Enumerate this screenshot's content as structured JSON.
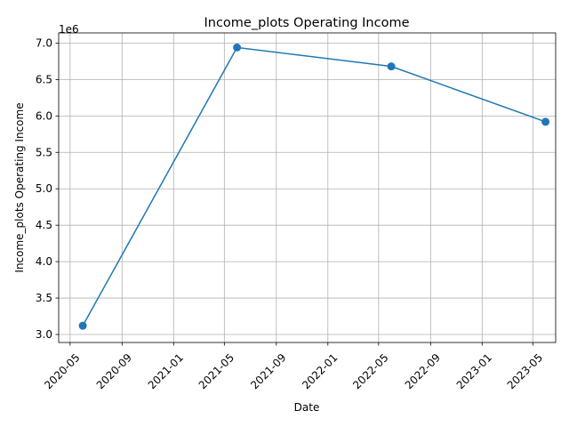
{
  "chart_data": {
    "type": "line",
    "title": "Income_plots Operating Income",
    "xlabel": "Date",
    "ylabel": "Income_plots Operating Income",
    "y_offset_label": "1e6",
    "y_multiplier": 1000000,
    "x_ticks": [
      "2020-05",
      "2020-09",
      "2021-01",
      "2021-05",
      "2021-09",
      "2022-01",
      "2022-05",
      "2022-09",
      "2023-01",
      "2023-05"
    ],
    "x_tick_labels": [
      "2020-05",
      "2020-09",
      "2021-01",
      "2021-05",
      "2021-09",
      "2022-01",
      "2022-05",
      "2022-09",
      "2023-01",
      "2023-05"
    ],
    "xlim": [
      "2020-04-04",
      "2023-06-24"
    ],
    "y_ticks": [
      3.0,
      3.5,
      4.0,
      4.5,
      5.0,
      5.5,
      6.0,
      6.5,
      7.0
    ],
    "y_tick_labels": [
      "3.0",
      "3.5",
      "4.0",
      "4.5",
      "5.0",
      "5.5",
      "6.0",
      "6.5",
      "7.0"
    ],
    "ylim": [
      2.89,
      7.14
    ],
    "grid": true,
    "color": "#1f77b4",
    "marker": "circle",
    "x": [
      "2020-05-31",
      "2021-05-31",
      "2022-05-31",
      "2023-05-31"
    ],
    "y": [
      3120000,
      6940000,
      6680000,
      5920000
    ]
  }
}
